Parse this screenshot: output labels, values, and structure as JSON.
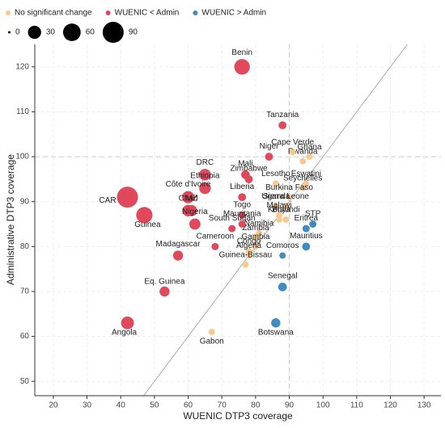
{
  "chart_data": {
    "type": "scatter",
    "x_label": "WUENIC DTP3 coverage",
    "y_label": "Administrative DTP3 coverage",
    "xlim": [
      14.5,
      135
    ],
    "ylim": [
      46.8,
      125
    ],
    "xticks": [
      20,
      30,
      40,
      50,
      60,
      70,
      80,
      90,
      100,
      110,
      120,
      130
    ],
    "yticks": [
      50,
      60,
      70,
      80,
      90,
      100,
      110,
      120
    ],
    "vline": 90,
    "hline": 100,
    "diagonal": true,
    "size_legend": [
      0,
      30,
      60,
      90
    ],
    "series": [
      {
        "name": "No significant change",
        "color": "#f6c98f",
        "labels": [
          "Rwanda",
          "Ghana",
          "Cape Verde",
          "Eswatini",
          "Seychelles",
          "Lesotho",
          "Burkina Faso",
          "Sierra Leone",
          "Uganda",
          "Burundi",
          "Malawi",
          "Kenya",
          "Namibia",
          "Zambia",
          "Gambia",
          "Congo",
          "Algeria",
          "Guinea-Bissau",
          "Gabon"
        ],
        "x": [
          94,
          96,
          91,
          95,
          94,
          86,
          90,
          89,
          86,
          89,
          87,
          87,
          81,
          80,
          80,
          78,
          78,
          77,
          67
        ],
        "values": [
          99,
          100,
          101,
          94,
          93,
          94,
          91,
          89,
          89,
          86,
          87,
          86,
          83,
          82,
          80,
          79,
          78,
          76,
          61
        ],
        "sizes": [
          4,
          4,
          4,
          4,
          4,
          4,
          4,
          4,
          4,
          4,
          4,
          4,
          4,
          4,
          4,
          4,
          4,
          4,
          4
        ]
      },
      {
        "name": "WUENIC < Admin",
        "color": "#e0485b",
        "labels": [
          "Benin",
          "Tanzania",
          "Niger",
          "DRC",
          "Mali",
          "Zimbabwe",
          "Ethiopia",
          "Liberia",
          "Côte d'Ivoire",
          "Chad",
          "MZ",
          "Nigeria",
          "Togo",
          "Mauritania",
          "South Sudan",
          "CAR",
          "Guinea",
          "Cameroon",
          "Madagascar",
          "Eq. Guinea",
          "Angola"
        ],
        "x": [
          76,
          88,
          84,
          65,
          77,
          78,
          65,
          76,
          60,
          60,
          61,
          62,
          76,
          76,
          73,
          42,
          47,
          68,
          57,
          53,
          42
        ],
        "values": [
          120,
          107,
          100,
          96,
          96,
          95,
          93,
          91,
          91,
          88,
          88,
          85,
          87,
          85,
          84,
          91,
          87,
          80,
          78,
          70,
          63
        ],
        "sizes": [
          45,
          8,
          8,
          22,
          10,
          8,
          22,
          8,
          25,
          22,
          20,
          20,
          6,
          6,
          6,
          90,
          50,
          6,
          15,
          15,
          28
        ]
      },
      {
        "name": "WUENIC > Admin",
        "color": "#3f8bc2",
        "labels": [
          "STP",
          "Eritrea",
          "Mauritius",
          "Comoros",
          "Senegal",
          "Botswana"
        ],
        "x": [
          97,
          95,
          95,
          88,
          88,
          86
        ],
        "values": [
          85,
          84,
          80,
          78,
          71,
          63
        ],
        "sizes": [
          6,
          6,
          8,
          4,
          10,
          12
        ]
      }
    ]
  }
}
